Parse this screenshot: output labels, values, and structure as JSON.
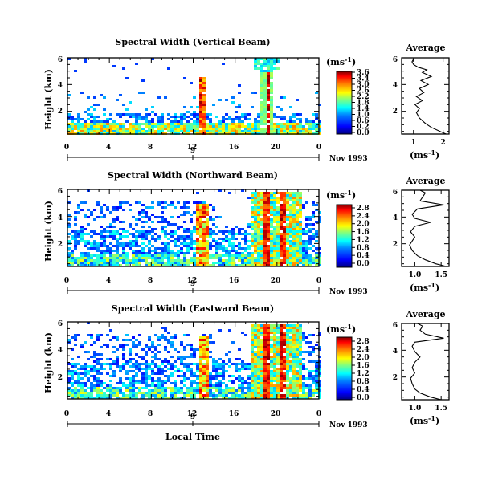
{
  "panels": [
    {
      "title": "Spectral Width (Vertical Beam)",
      "colorbar_ticks": [
        "3.6",
        "3.4",
        "3.0",
        "2.6",
        "2.2",
        "1.8",
        "1.4",
        "1.0",
        "0.6",
        "0.2",
        "0.0"
      ],
      "profile_xticks": [
        "1",
        "2"
      ],
      "profile_xlim": [
        0.6,
        2.2
      ],
      "profile_title": "Average"
    },
    {
      "title": "Spectral Width (Northward Beam)",
      "colorbar_ticks": [
        "2.8",
        "2.4",
        "2.0",
        "1.6",
        "1.2",
        "0.8",
        "0.4",
        "0.0"
      ],
      "profile_xticks": [
        "1.0",
        "1.5"
      ],
      "profile_xlim": [
        0.75,
        1.65
      ],
      "profile_title": "Average"
    },
    {
      "title": "Spectral Width (Eastward Beam)",
      "colorbar_ticks": [
        "2.8",
        "2.4",
        "2.0",
        "1.6",
        "1.2",
        "0.8",
        "0.4",
        "0.0"
      ],
      "profile_xticks": [
        "1.0",
        "1.5"
      ],
      "profile_xlim": [
        0.75,
        1.65
      ],
      "profile_title": "Average"
    }
  ],
  "common": {
    "ylabel": "Height (km)",
    "yticks": [
      "2",
      "4",
      "6"
    ],
    "xticks": [
      "0",
      "4",
      "8",
      "12",
      "16",
      "20",
      "0"
    ],
    "date_tick": "9",
    "date_label": "Nov 1993",
    "unit_label": "(ms",
    "unit_exp": "-1",
    "unit_close": ")",
    "xlabel": "Local Time"
  },
  "chart_data": [
    {
      "type": "heatmap",
      "title": "Spectral Width (Vertical Beam)",
      "xlabel": "Local Time",
      "ylabel": "Height (km)",
      "xlim": [
        0,
        24
      ],
      "ylim": [
        0.3,
        6
      ],
      "x_ticks": [
        0,
        4,
        8,
        12,
        16,
        20,
        24
      ],
      "y_ticks": [
        2,
        4,
        6
      ],
      "colorbar": {
        "label": "(ms-1)",
        "range": [
          0,
          3.6
        ]
      },
      "features": "high widths 0-2 km all day; narrow plume ~12.8 LT to 4.5 km; tall plume 18.5-19.5 LT to 6 km",
      "profile": {
        "title": "Average",
        "xlabel": "(ms-1)",
        "x": [
          2.1,
          1.9,
          1.6,
          1.4,
          1.2,
          1.1,
          1.2,
          1.05,
          1.3,
          1.1,
          1.35,
          1.2,
          1.5,
          1.25,
          1.6,
          1.3,
          1.45,
          1.15,
          1.0,
          0.95,
          1.0
        ],
        "y": [
          0.3,
          0.5,
          0.8,
          1.1,
          1.5,
          1.9,
          2.2,
          2.5,
          2.8,
          3.1,
          3.4,
          3.7,
          4.0,
          4.3,
          4.6,
          4.9,
          5.1,
          5.3,
          5.5,
          5.7,
          5.9
        ]
      }
    },
    {
      "type": "heatmap",
      "title": "Spectral Width (Northward Beam)",
      "xlabel": "Local Time",
      "ylabel": "Height (km)",
      "xlim": [
        0,
        24
      ],
      "ylim": [
        0.3,
        6
      ],
      "x_ticks": [
        0,
        4,
        8,
        12,
        16,
        20,
        24
      ],
      "y_ticks": [
        2,
        4,
        6
      ],
      "colorbar": {
        "label": "(ms-1)",
        "range": [
          0,
          2.8
        ]
      },
      "features": "broad echoes 0-5 km; plume 12-13 LT to 4.8 km; strong region 17.5-22 LT to 6 km",
      "profile": {
        "title": "Average",
        "xlabel": "(ms-1)",
        "x": [
          1.6,
          1.4,
          1.2,
          1.05,
          0.95,
          0.9,
          0.95,
          1.0,
          0.92,
          1.0,
          1.3,
          1.0,
          0.95,
          1.05,
          1.55,
          1.1,
          1.15,
          1.2,
          1.1
        ],
        "y": [
          0.3,
          0.5,
          0.8,
          1.1,
          1.5,
          1.9,
          2.2,
          2.5,
          2.9,
          3.3,
          3.6,
          3.9,
          4.2,
          4.6,
          4.9,
          5.2,
          5.5,
          5.8,
          6.0
        ]
      }
    },
    {
      "type": "heatmap",
      "title": "Spectral Width (Eastward Beam)",
      "xlabel": "Local Time",
      "ylabel": "Height (km)",
      "xlim": [
        0,
        24
      ],
      "ylim": [
        0.3,
        6
      ],
      "x_ticks": [
        0,
        4,
        8,
        12,
        16,
        20,
        24
      ],
      "y_ticks": [
        2,
        4,
        6
      ],
      "colorbar": {
        "label": "(ms-1)",
        "range": [
          0,
          2.8
        ]
      },
      "features": "broad echoes 0-5 km; plume ~12.8 LT to 4.5 km; strong region 17.5-22 LT to 6 km",
      "profile": {
        "title": "Average",
        "xlabel": "(ms-1)",
        "x": [
          1.5,
          1.3,
          1.1,
          1.0,
          0.95,
          0.92,
          1.0,
          0.95,
          1.0,
          1.1,
          1.0,
          0.95,
          1.0,
          1.55,
          1.2,
          1.1,
          1.15,
          1.05
        ],
        "y": [
          0.3,
          0.5,
          0.8,
          1.1,
          1.5,
          1.9,
          2.3,
          2.7,
          3.1,
          3.5,
          3.9,
          4.3,
          4.6,
          4.9,
          5.2,
          5.5,
          5.8,
          6.0
        ]
      }
    }
  ]
}
